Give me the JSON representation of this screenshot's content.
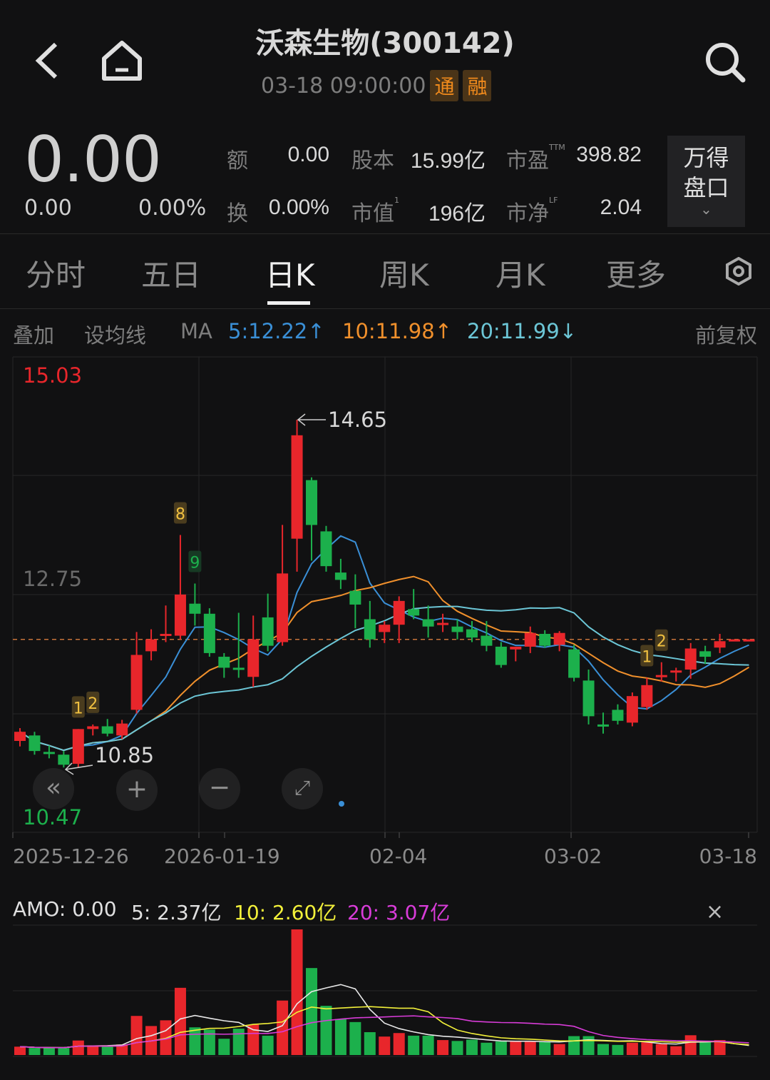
{
  "header": {
    "title": "沃森生物(300142)",
    "datetime": "03-18 09:00:00",
    "badges": [
      "通",
      "融"
    ],
    "icons": {
      "back": "chevron-left-icon",
      "home": "home-icon",
      "search": "search-icon"
    }
  },
  "quote": {
    "price": "0.00",
    "change": "0.00",
    "change_pct": "0.00%",
    "stats": [
      {
        "label": "额",
        "value": "0.00"
      },
      {
        "label": "股本",
        "value": "15.99亿"
      },
      {
        "label": "市盈",
        "sup": "TTM",
        "value": "398.82"
      },
      {
        "label": "换",
        "value": "0.00%"
      },
      {
        "label": "市值",
        "sup": "1",
        "value": "196亿"
      },
      {
        "label": "市净",
        "sup": "LF",
        "value": "2.04"
      }
    ],
    "panel_button": {
      "line1": "万得",
      "line2": "盘口"
    }
  },
  "tabs": [
    {
      "label": "分时",
      "active": false
    },
    {
      "label": "五日",
      "active": false
    },
    {
      "label": "日K",
      "active": true
    },
    {
      "label": "周K",
      "active": false
    },
    {
      "label": "月K",
      "active": false
    },
    {
      "label": "更多",
      "active": false
    }
  ],
  "ma_bar": {
    "overlay": "叠加",
    "set_ma": "设均线",
    "ma_label": "MA",
    "ma5": "5:12.22↑",
    "ma10": "10:11.98↑",
    "ma20": "20:11.99↓",
    "adjust": "前复权"
  },
  "colors": {
    "up": "#e8262b",
    "down": "#1cb04c",
    "ma5": "#3a8fd6",
    "ma10": "#f0902c",
    "ma20": "#6cc6d6",
    "vol_ma5": "#e8e8e8",
    "vol_ma10": "#f2f03a",
    "vol_ma20": "#d83cd8"
  },
  "chart_data": {
    "type": "candlestick",
    "price_labels": {
      "max": "15.03",
      "mid": "12.75",
      "min": "10.47"
    },
    "ylim": [
      10.47,
      15.03
    ],
    "annotations": {
      "high": "14.65",
      "low": "10.85"
    },
    "current_price": 12.25,
    "x_tick_labels": [
      "2025-12-26",
      "2026-01-19",
      "02-04",
      "03-02",
      "03-18"
    ],
    "signal_markers": [
      {
        "index": 4,
        "label": "1"
      },
      {
        "index": 5,
        "label": "2"
      },
      {
        "index": 11,
        "label": "8"
      },
      {
        "index": 12,
        "label": "9"
      },
      {
        "index": 43,
        "label": "1"
      },
      {
        "index": 44,
        "label": "2"
      }
    ],
    "ohlc": [
      [
        11.14,
        11.28,
        11.08,
        11.24
      ],
      [
        11.2,
        11.24,
        10.99,
        11.03
      ],
      [
        11.02,
        11.09,
        10.95,
        11.0
      ],
      [
        10.99,
        11.03,
        10.85,
        10.88
      ],
      [
        10.89,
        11.27,
        10.85,
        11.27
      ],
      [
        11.27,
        11.32,
        11.2,
        11.3
      ],
      [
        11.3,
        11.38,
        11.19,
        11.22
      ],
      [
        11.2,
        11.37,
        11.16,
        11.33
      ],
      [
        11.48,
        12.33,
        11.44,
        12.08
      ],
      [
        12.12,
        12.36,
        12.02,
        12.25
      ],
      [
        12.29,
        12.62,
        12.22,
        12.31
      ],
      [
        12.29,
        13.39,
        12.25,
        12.74
      ],
      [
        12.64,
        12.86,
        12.4,
        12.53
      ],
      [
        12.53,
        12.59,
        12.06,
        12.1
      ],
      [
        12.06,
        12.1,
        11.83,
        11.94
      ],
      [
        11.94,
        12.54,
        11.83,
        11.93
      ],
      [
        11.84,
        12.51,
        11.73,
        12.25
      ],
      [
        12.49,
        12.75,
        12.12,
        12.18
      ],
      [
        12.22,
        13.5,
        12.18,
        12.97
      ],
      [
        13.35,
        14.65,
        12.99,
        14.48
      ],
      [
        13.99,
        14.02,
        13.11,
        13.5
      ],
      [
        13.43,
        13.49,
        12.99,
        13.05
      ],
      [
        12.98,
        13.13,
        12.8,
        12.9
      ],
      [
        12.78,
        12.96,
        12.37,
        12.63
      ],
      [
        12.47,
        12.67,
        12.16,
        12.25
      ],
      [
        12.33,
        12.45,
        12.21,
        12.41
      ],
      [
        12.41,
        12.72,
        12.21,
        12.67
      ],
      [
        12.58,
        12.8,
        12.47,
        12.51
      ],
      [
        12.47,
        12.62,
        12.27,
        12.39
      ],
      [
        12.42,
        12.53,
        12.33,
        12.43
      ],
      [
        12.39,
        12.47,
        12.25,
        12.33
      ],
      [
        12.36,
        12.45,
        12.22,
        12.27
      ],
      [
        12.29,
        12.45,
        12.12,
        12.18
      ],
      [
        12.17,
        12.22,
        11.94,
        11.97
      ],
      [
        12.14,
        12.17,
        12.01,
        12.17
      ],
      [
        12.17,
        12.39,
        12.1,
        12.32
      ],
      [
        12.31,
        12.35,
        12.16,
        12.18
      ],
      [
        12.19,
        12.34,
        12.12,
        12.32
      ],
      [
        12.14,
        12.19,
        11.79,
        11.83
      ],
      [
        11.8,
        11.92,
        11.32,
        11.41
      ],
      [
        11.32,
        11.45,
        11.22,
        11.3
      ],
      [
        11.48,
        11.54,
        11.32,
        11.36
      ],
      [
        11.34,
        11.67,
        11.3,
        11.63
      ],
      [
        11.51,
        11.83,
        11.48,
        11.75
      ],
      [
        11.84,
        12.0,
        11.79,
        11.86
      ],
      [
        11.89,
        11.94,
        11.79,
        11.91
      ],
      [
        11.92,
        12.21,
        11.82,
        12.15
      ],
      [
        12.12,
        12.18,
        11.98,
        12.06
      ],
      [
        12.16,
        12.31,
        12.1,
        12.23
      ],
      [
        12.25,
        12.25,
        12.25,
        12.25
      ],
      [
        12.25,
        12.25,
        12.25,
        12.25
      ]
    ],
    "volume_unit": "亿",
    "volume": [
      1.9,
      1.6,
      1.6,
      1.6,
      3.3,
      2.2,
      1.9,
      2.4,
      8.9,
      6.6,
      7.9,
      15.3,
      6.3,
      5.8,
      3.7,
      6.0,
      6.9,
      4.4,
      12.4,
      28.6,
      19.8,
      11.2,
      8.2,
      7.5,
      5.2,
      4.2,
      5.0,
      4.4,
      4.4,
      3.4,
      3.2,
      3.5,
      2.8,
      3.1,
      3.1,
      3.2,
      3.0,
      2.5,
      4.3,
      4.3,
      2.5,
      2.3,
      2.8,
      2.9,
      2.5,
      2.0,
      4.5,
      3.0,
      3.4,
      0,
      0
    ]
  },
  "chart_controls": {
    "icons": [
      "double-chevron-left-icon",
      "zoom-in-icon",
      "zoom-out-icon",
      "expand-icon"
    ]
  },
  "volume_bar": {
    "amo": "AMO: 0.00",
    "ma5": "5: 2.37亿",
    "ma10": "10: 2.60亿",
    "ma20": "20: 3.07亿"
  }
}
